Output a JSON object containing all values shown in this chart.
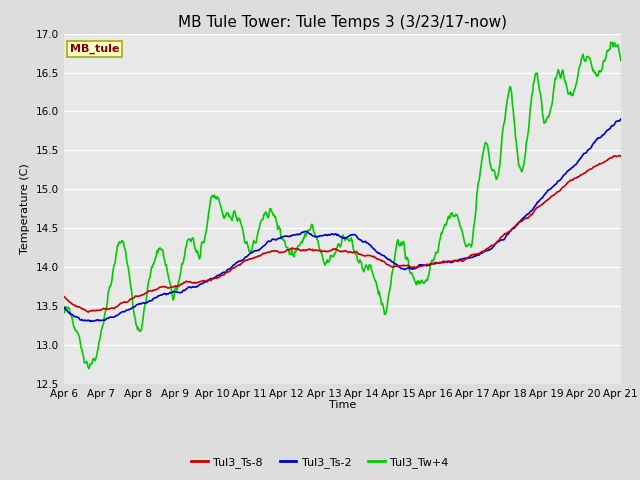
{
  "title": "MB Tule Tower: Tule Temps 3 (3/23/17-now)",
  "xlabel": "Time",
  "ylabel": "Temperature (C)",
  "ylim": [
    12.5,
    17.0
  ],
  "x_tick_labels": [
    "Apr 6",
    "Apr 7",
    "Apr 8",
    "Apr 9",
    "Apr 10",
    "Apr 11",
    "Apr 12",
    "Apr 13",
    "Apr 14",
    "Apr 15",
    "Apr 16",
    "Apr 17",
    "Apr 18",
    "Apr 19",
    "Apr 20",
    "Apr 21"
  ],
  "series": {
    "Tul3_Ts-8": {
      "color": "#cc0000",
      "lw": 1.2
    },
    "Tul3_Ts-2": {
      "color": "#0000cc",
      "lw": 1.2
    },
    "Tul3_Tw+4": {
      "color": "#00cc00",
      "lw": 1.2
    }
  },
  "bg_color": "#dddddd",
  "plot_bg": "#e8e8e8",
  "grid_color": "#ffffff",
  "legend_box_color": "#ffffcc",
  "legend_box_edge": "#aaa800",
  "legend_text_color": "#880000",
  "title_fontsize": 11,
  "axis_fontsize": 8,
  "tick_fontsize": 7.5
}
